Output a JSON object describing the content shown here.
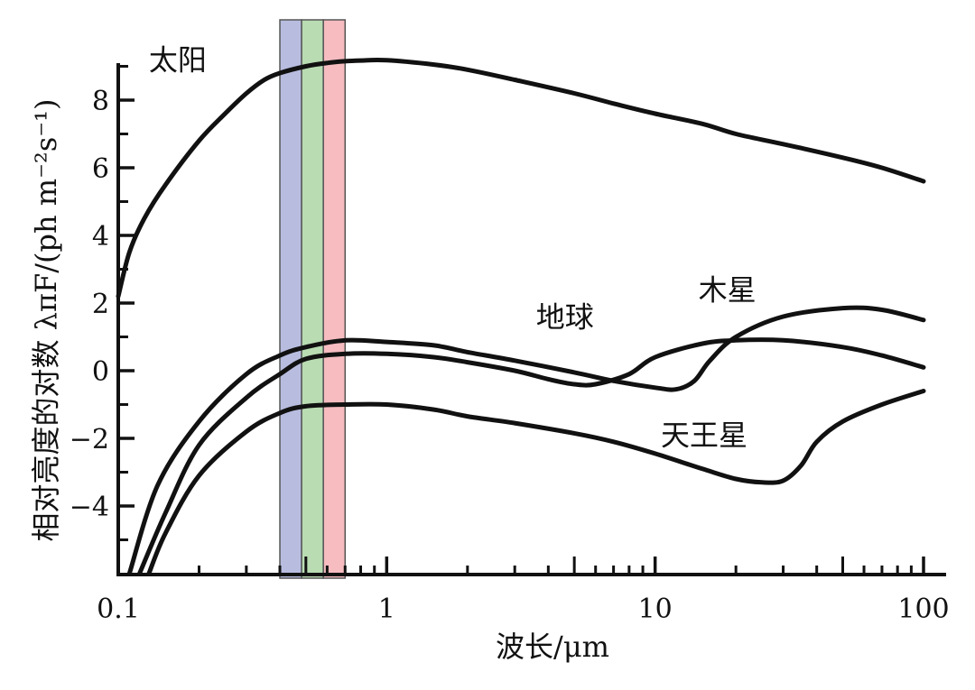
{
  "chart_data": {
    "type": "line",
    "xscale": "log",
    "xlim": [
      0.1,
      100
    ],
    "ylim": [
      -6,
      9
    ],
    "xlabel": "波长/μm",
    "ylabel": "相对亮度的对数 λπF/(ph m⁻²s⁻¹)",
    "x_ticks": [
      0.1,
      1,
      10,
      100
    ],
    "x_tick_labels": [
      "0.1",
      "1",
      "10",
      "100"
    ],
    "y_ticks": [
      -4,
      -2,
      0,
      2,
      4,
      6,
      8
    ],
    "y_tick_labels": [
      "−4",
      "−2",
      "0",
      "2",
      "4",
      "6",
      "8"
    ],
    "visible_band_um": [
      0.4,
      0.7
    ],
    "band_colors": [
      "#b8bde0",
      "#b9dcb3",
      "#f6bcc0"
    ],
    "series": [
      {
        "name": "太阳",
        "x": [
          0.1,
          0.11,
          0.125,
          0.15,
          0.2,
          0.25,
          0.3,
          0.35,
          0.4,
          0.5,
          0.6,
          0.7,
          0.8,
          1,
          1.5,
          2,
          3,
          5,
          7,
          10,
          15,
          20,
          30,
          50,
          70,
          100
        ],
        "y": [
          2.2,
          3.5,
          4.5,
          5.5,
          6.8,
          7.6,
          8.2,
          8.6,
          8.8,
          9.0,
          9.1,
          9.15,
          9.17,
          9.18,
          9.05,
          8.9,
          8.6,
          8.2,
          7.9,
          7.6,
          7.3,
          7.0,
          6.7,
          6.3,
          6.0,
          5.6
        ]
      },
      {
        "name": "地球",
        "x": [
          0.12,
          0.15,
          0.2,
          0.3,
          0.4,
          0.5,
          0.7,
          1,
          1.5,
          2,
          3,
          4,
          5,
          6,
          8,
          10,
          15,
          20,
          30,
          50,
          70,
          100
        ],
        "y": [
          -6,
          -4.2,
          -2.2,
          -0.8,
          -0.1,
          0.35,
          0.5,
          0.5,
          0.4,
          0.25,
          0.0,
          -0.25,
          -0.4,
          -0.4,
          -0.1,
          0.4,
          0.8,
          0.9,
          0.9,
          0.7,
          0.45,
          0.1
        ]
      },
      {
        "name": "木星",
        "x": [
          0.11,
          0.14,
          0.2,
          0.3,
          0.4,
          0.5,
          0.7,
          1,
          1.5,
          2,
          3,
          5,
          7,
          10,
          12,
          14,
          16,
          20,
          30,
          50,
          70,
          100
        ],
        "y": [
          -6,
          -3.4,
          -1.5,
          -0.1,
          0.45,
          0.7,
          0.9,
          0.85,
          0.75,
          0.55,
          0.3,
          -0.05,
          -0.3,
          -0.5,
          -0.55,
          -0.3,
          0.3,
          1.0,
          1.6,
          1.85,
          1.8,
          1.5
        ]
      },
      {
        "name": "天王星",
        "x": [
          0.13,
          0.15,
          0.2,
          0.3,
          0.4,
          0.5,
          0.7,
          1,
          1.5,
          2,
          3,
          5,
          7,
          10,
          15,
          20,
          25,
          30,
          35,
          40,
          50,
          70,
          100
        ],
        "y": [
          -6,
          -4.8,
          -3.1,
          -1.8,
          -1.25,
          -1.05,
          -1.0,
          -1.0,
          -1.15,
          -1.35,
          -1.55,
          -1.85,
          -2.1,
          -2.45,
          -2.9,
          -3.2,
          -3.3,
          -3.25,
          -2.8,
          -2.1,
          -1.5,
          -1.0,
          -0.6
        ]
      }
    ]
  }
}
